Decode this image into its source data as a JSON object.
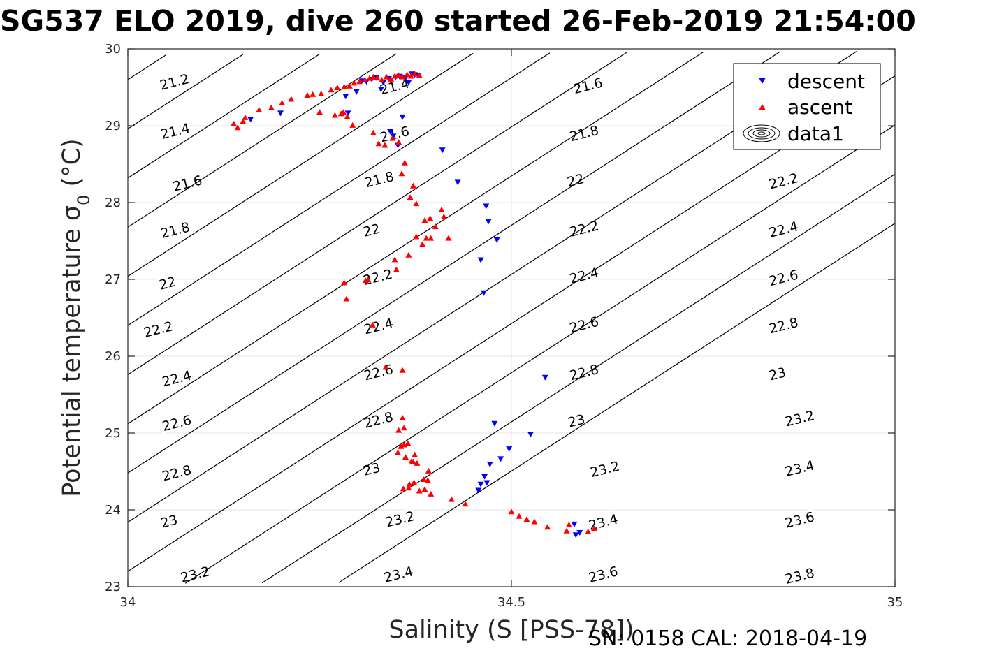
{
  "title": "SG537 ELO 2019, dive 260 started 26-Feb-2019 21:54:00",
  "footer": "SN: 0158  CAL: 2018-04-19",
  "colors": {
    "descent": "#0000ff",
    "ascent": "#ff0000",
    "contour": "#000000",
    "grid": "#e6e6e6",
    "axis": "#262626"
  },
  "chart_data": {
    "type": "scatter",
    "xlabel": "Salinity (S [PSS-78])",
    "ylabel": "Potential temperature σ_0 (°C)",
    "xlim": [
      34,
      35
    ],
    "ylim": [
      23,
      30
    ],
    "x_ticks": [
      "34",
      "34.5",
      "35"
    ],
    "y_ticks": [
      "23",
      "24",
      "25",
      "26",
      "27",
      "28",
      "29",
      "30"
    ],
    "grid": true,
    "legend_position": "top-right",
    "legend": [
      "descent",
      "ascent",
      "data1"
    ],
    "series": [
      {
        "name": "descent",
        "marker": "down-triangle",
        "x": [
          34.16,
          34.199,
          34.284,
          34.287,
          34.298,
          34.305,
          34.311,
          34.318,
          34.324,
          34.333,
          34.34,
          34.349,
          34.354,
          34.362,
          34.37,
          34.374,
          34.378,
          34.366,
          34.33,
          34.342,
          34.346,
          34.352,
          34.358,
          34.41,
          34.43,
          34.467,
          34.47,
          34.481,
          34.46,
          34.464,
          34.544,
          34.478,
          34.525,
          34.497,
          34.486,
          34.472,
          34.465,
          34.468,
          34.46,
          34.457,
          34.582,
          34.584,
          34.589
        ],
        "y": [
          29.08,
          29.16,
          29.38,
          29.16,
          29.44,
          29.58,
          29.57,
          29.6,
          29.62,
          29.56,
          29.61,
          29.63,
          29.64,
          29.62,
          29.67,
          29.66,
          29.65,
          29.56,
          29.47,
          28.92,
          28.86,
          28.74,
          29.11,
          28.68,
          28.26,
          27.95,
          27.75,
          27.51,
          27.25,
          26.82,
          25.72,
          25.12,
          24.98,
          24.79,
          24.66,
          24.59,
          24.43,
          24.35,
          24.33,
          24.25,
          23.81,
          23.67,
          23.7
        ]
      },
      {
        "name": "ascent",
        "marker": "up-triangle",
        "x": [
          34.138,
          34.143,
          34.15,
          34.153,
          34.171,
          34.187,
          34.201,
          34.213,
          34.234,
          34.241,
          34.252,
          34.265,
          34.273,
          34.282,
          34.289,
          34.295,
          34.302,
          34.309,
          34.315,
          34.32,
          34.325,
          34.331,
          34.337,
          34.343,
          34.348,
          34.353,
          34.358,
          34.364,
          34.369,
          34.374,
          34.38,
          34.25,
          34.27,
          34.278,
          34.281,
          34.286,
          34.293,
          34.32,
          34.327,
          34.335,
          34.345,
          34.353,
          34.357,
          34.361,
          34.368,
          34.372,
          34.376,
          34.387,
          34.394,
          34.389,
          34.401,
          34.409,
          34.412,
          34.418,
          34.395,
          34.384,
          34.376,
          34.366,
          34.348,
          34.35,
          34.31,
          34.282,
          34.285,
          34.313,
          34.319,
          34.336,
          34.358,
          34.36,
          34.358,
          34.353,
          34.356,
          34.352,
          34.36,
          34.365,
          34.362,
          34.372,
          34.377,
          34.392,
          34.386,
          34.373,
          34.367,
          34.359,
          34.387,
          34.38,
          34.366,
          34.391,
          34.395,
          34.37,
          34.374,
          34.422,
          34.44,
          34.5,
          34.51,
          34.52,
          34.53,
          34.547,
          34.572,
          34.6,
          34.575,
          34.608
        ],
        "y": [
          29.03,
          28.98,
          29.06,
          29.11,
          29.21,
          29.24,
          29.3,
          29.35,
          29.4,
          29.41,
          29.42,
          29.47,
          29.5,
          29.51,
          29.52,
          29.56,
          29.58,
          29.6,
          29.62,
          29.64,
          29.63,
          29.6,
          29.64,
          29.61,
          29.65,
          29.66,
          29.64,
          29.67,
          29.65,
          29.68,
          29.66,
          29.18,
          29.14,
          29.16,
          29.18,
          29.12,
          29.01,
          28.91,
          28.77,
          28.75,
          28.84,
          28.79,
          28.38,
          28.52,
          28.07,
          28.22,
          27.99,
          27.77,
          27.8,
          27.54,
          27.69,
          27.91,
          27.82,
          27.54,
          27.54,
          27.46,
          27.56,
          27.32,
          27.26,
          27.13,
          26.99,
          26.96,
          26.75,
          27.0,
          26.41,
          25.86,
          25.82,
          25.07,
          25.2,
          25.04,
          24.83,
          24.75,
          24.85,
          24.87,
          24.69,
          24.63,
          24.61,
          24.51,
          24.4,
          24.36,
          24.34,
          24.28,
          24.27,
          24.25,
          24.29,
          24.39,
          24.21,
          24.64,
          24.72,
          24.14,
          24.08,
          23.98,
          23.92,
          23.88,
          23.85,
          23.78,
          23.73,
          23.72,
          23.81,
          23.76
        ]
      }
    ],
    "contours": [
      {
        "label": "21.2",
        "label_pos": [
          34.061,
          29.56
        ]
      },
      {
        "label": "21.4",
        "label_pos": [
          34.062,
          28.92
        ],
        "label2_pos": [
          34.348,
          29.5
        ]
      },
      {
        "label": "21.6",
        "label_pos": [
          34.078,
          28.24
        ],
        "label2_pos": [
          34.348,
          28.88
        ],
        "label3_pos": [
          34.6,
          29.51
        ]
      },
      {
        "label": "21.8",
        "label_pos": [
          34.062,
          27.63
        ],
        "label2_pos": [
          34.328,
          28.29
        ],
        "label3_pos": [
          34.595,
          28.89
        ]
      },
      {
        "label": "22",
        "label_pos": [
          34.052,
          26.94
        ],
        "label2_pos": [
          34.318,
          27.63
        ],
        "label3_pos": [
          34.584,
          28.28
        ]
      },
      {
        "label": "22.2",
        "label_pos": [
          34.04,
          26.34
        ],
        "label2_pos": [
          34.326,
          27.02
        ],
        "label3_pos": [
          34.595,
          27.65
        ],
        "label4_pos": [
          34.855,
          28.27
        ]
      },
      {
        "label": "22.4",
        "label_pos": [
          34.064,
          25.7
        ],
        "label2_pos": [
          34.327,
          26.38
        ],
        "label3_pos": [
          34.595,
          27.04
        ],
        "label4_pos": [
          34.855,
          27.64
        ]
      },
      {
        "label": "22.6",
        "label_pos": [
          34.064,
          25.12
        ],
        "label2_pos": [
          34.327,
          25.78
        ],
        "label3_pos": [
          34.595,
          26.4
        ],
        "label4_pos": [
          34.855,
          27.01
        ]
      },
      {
        "label": "22.8",
        "label_pos": [
          34.064,
          24.47
        ],
        "label2_pos": [
          34.327,
          25.16
        ],
        "label3_pos": [
          34.595,
          25.78
        ],
        "label4_pos": [
          34.855,
          26.39
        ]
      },
      {
        "label": "23",
        "label_pos": [
          34.054,
          23.84
        ],
        "label2_pos": [
          34.318,
          24.52
        ],
        "label3_pos": [
          34.585,
          25.15
        ],
        "label4_pos": [
          34.847,
          25.76
        ]
      },
      {
        "label": "23.2",
        "label_pos": [
          34.088,
          23.15
        ],
        "label2_pos": [
          34.355,
          23.87
        ],
        "label3_pos": [
          34.622,
          24.52
        ],
        "label4_pos": [
          34.876,
          25.18
        ]
      },
      {
        "label": "23.4",
        "label_pos": [
          34.353,
          23.15
        ],
        "label2_pos": [
          34.62,
          23.83
        ],
        "label3_pos": [
          34.876,
          24.53
        ]
      },
      {
        "label": "23.6",
        "label_pos": [
          34.62,
          23.15
        ],
        "label2_pos": [
          34.876,
          23.86
        ]
      },
      {
        "label": "23.8",
        "label_pos": [
          34.876,
          23.13
        ]
      }
    ]
  }
}
